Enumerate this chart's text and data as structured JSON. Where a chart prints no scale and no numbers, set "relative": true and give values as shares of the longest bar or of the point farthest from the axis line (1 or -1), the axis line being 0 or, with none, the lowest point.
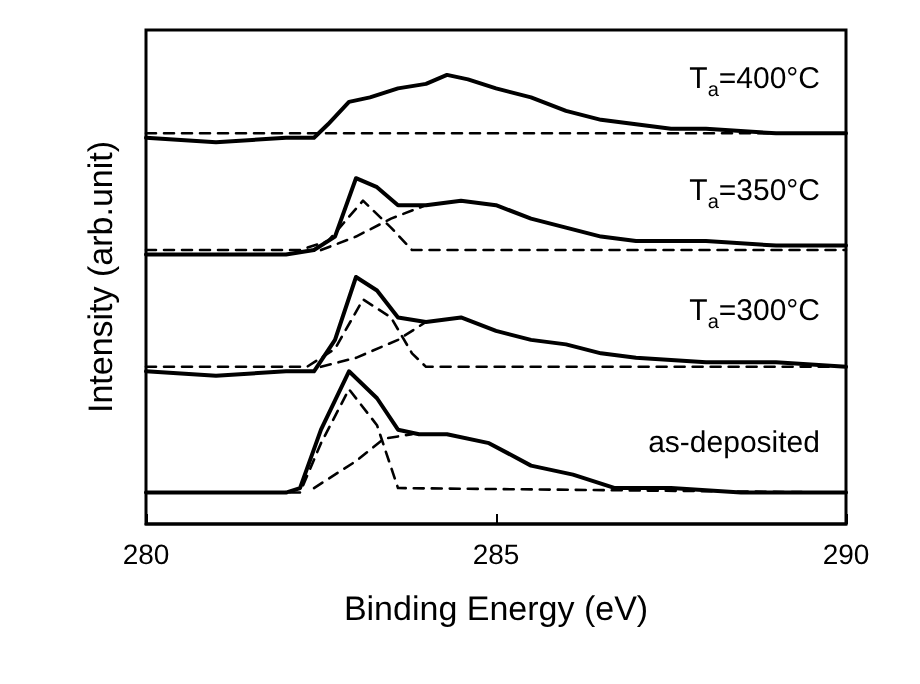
{
  "chart_data": {
    "type": "line",
    "relative": true,
    "xlabel": "Binding Energy (eV)",
    "ylabel": "Intensity (arb.unit)",
    "xlim": [
      280,
      290
    ],
    "xticks": [
      280,
      285,
      290
    ],
    "tick_labels": "x",
    "grid": false,
    "marker": "none",
    "series": [
      {
        "color": "#000000",
        "line_style": "solid",
        "x": [
          280,
          281,
          282,
          282.4,
          282.6,
          282.9,
          283.2,
          283.6,
          284,
          284.3,
          284.6,
          285,
          285.5,
          286,
          286.5,
          287,
          287.5,
          288,
          289,
          290
        ],
        "values": [
          0.86,
          0.85,
          0.86,
          0.86,
          0.89,
          0.94,
          0.95,
          0.97,
          0.98,
          1,
          0.99,
          0.97,
          0.95,
          0.92,
          0.9,
          0.89,
          0.88,
          0.88,
          0.87,
          0.87
        ]
      },
      {
        "color": "#000000",
        "line_style": "dashed",
        "x": [
          280,
          283,
          290
        ],
        "values": [
          0.87,
          0.87,
          0.87
        ]
      },
      {
        "color": "#000000",
        "line_style": "solid",
        "x": [
          280,
          281,
          282,
          282.4,
          282.7,
          283,
          283.3,
          283.6,
          284,
          284.5,
          285,
          285.5,
          286,
          286.5,
          287,
          288,
          289,
          290
        ],
        "values": [
          0.6,
          0.6,
          0.6,
          0.61,
          0.64,
          0.77,
          0.75,
          0.71,
          0.71,
          0.72,
          0.71,
          0.68,
          0.66,
          0.64,
          0.63,
          0.63,
          0.62,
          0.62
        ]
      },
      {
        "color": "#000000",
        "line_style": "dashed",
        "x": [
          280,
          282.2,
          282.6,
          283.1,
          283.5,
          283.8,
          290
        ],
        "values": [
          0.61,
          0.61,
          0.63,
          0.72,
          0.66,
          0.61,
          0.61
        ]
      },
      {
        "color": "#000000",
        "line_style": "dashed",
        "x": [
          282.5,
          283,
          283.5,
          284
        ],
        "values": [
          0.61,
          0.64,
          0.68,
          0.71
        ]
      },
      {
        "color": "#000000",
        "line_style": "solid",
        "x": [
          280,
          281,
          282,
          282.4,
          282.7,
          283,
          283.3,
          283.6,
          284,
          284.5,
          285,
          285.5,
          286,
          286.5,
          287,
          288,
          289,
          290
        ],
        "values": [
          0.34,
          0.33,
          0.34,
          0.34,
          0.41,
          0.55,
          0.52,
          0.46,
          0.45,
          0.46,
          0.43,
          0.41,
          0.4,
          0.38,
          0.37,
          0.36,
          0.36,
          0.35
        ]
      },
      {
        "color": "#000000",
        "line_style": "dashed",
        "x": [
          280,
          282.3,
          282.7,
          283.1,
          283.5,
          283.8,
          284,
          290
        ],
        "values": [
          0.35,
          0.35,
          0.39,
          0.5,
          0.46,
          0.38,
          0.35,
          0.35
        ]
      },
      {
        "color": "#000000",
        "line_style": "dashed",
        "x": [
          282.5,
          283,
          283.6,
          284
        ],
        "values": [
          0.35,
          0.37,
          0.41,
          0.45
        ]
      },
      {
        "color": "#000000",
        "line_style": "solid",
        "x": [
          280,
          281,
          282,
          282.2,
          282.5,
          282.9,
          283.3,
          283.6,
          283.9,
          284.3,
          284.9,
          285.5,
          286.1,
          286.7,
          287.5,
          288.5,
          290
        ],
        "values": [
          0.07,
          0.07,
          0.07,
          0.08,
          0.21,
          0.34,
          0.28,
          0.21,
          0.2,
          0.2,
          0.18,
          0.13,
          0.11,
          0.08,
          0.08,
          0.07,
          0.07
        ]
      },
      {
        "color": "#000000",
        "line_style": "dashed",
        "x": [
          280,
          282.2,
          282.5,
          282.9,
          283.3,
          283.6,
          290
        ],
        "values": [
          0.07,
          0.07,
          0.18,
          0.3,
          0.22,
          0.08,
          0.07
        ]
      },
      {
        "color": "#000000",
        "line_style": "dashed",
        "x": [
          282.4,
          283,
          283.4,
          283.8
        ],
        "values": [
          0.08,
          0.14,
          0.19,
          0.2
        ]
      }
    ],
    "annotations": [
      "T$_{a}$=400°C",
      "T$_{a}$=350°C",
      "T$_{a}$=300°C",
      "as-deposited"
    ]
  }
}
